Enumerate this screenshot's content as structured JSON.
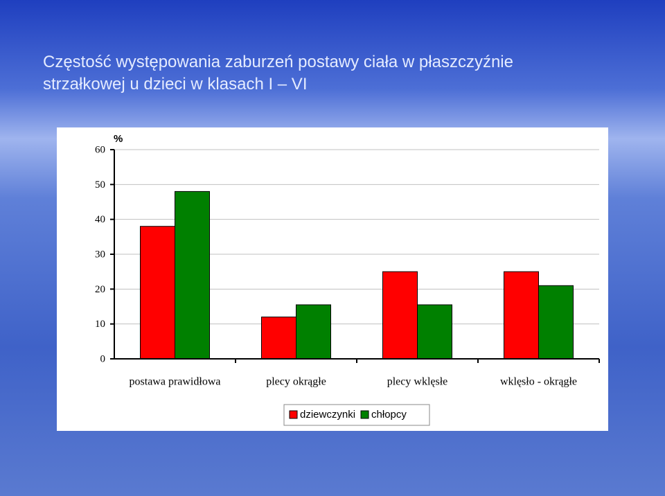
{
  "chart_data": {
    "type": "bar",
    "title": "Częstość występowania zaburzeń postawy ciała w płaszczyźnie strzałkowej u dzieci w klasach I – VI",
    "y_label": "%",
    "categories": [
      "postawa prawidłowa",
      "plecy okrągłe",
      "plecy wklęsłe",
      "wklęsło - okrągłe"
    ],
    "series": [
      {
        "name": "dziewczynki",
        "color": "#ff0000",
        "values": [
          38,
          12,
          25,
          25
        ]
      },
      {
        "name": "chłopcy",
        "color": "#008000",
        "values": [
          48,
          15.5,
          15.5,
          21
        ]
      }
    ],
    "ylim": [
      0,
      60
    ],
    "yticks": [
      0,
      10,
      20,
      30,
      40,
      50,
      60
    ],
    "grid": true,
    "legend": "bottom"
  }
}
